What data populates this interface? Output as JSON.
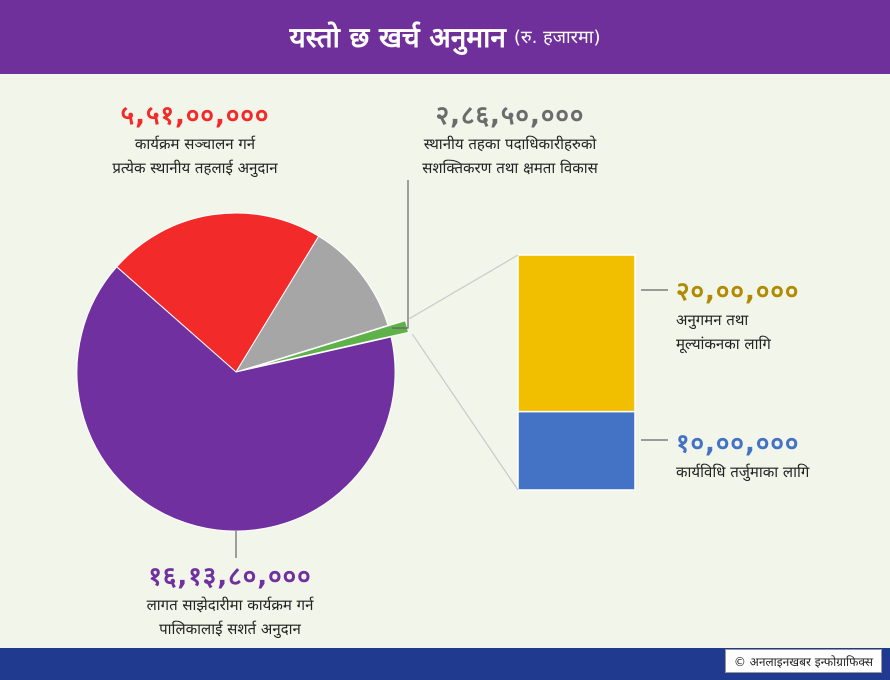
{
  "header": {
    "title": "यस्तो छ खर्च अनुमान",
    "subtitle": "(रु. हजारमा)"
  },
  "footer": {
    "credit": "© अनलाइनखबर इन्फोग्राफिक्स"
  },
  "colors": {
    "header_bg": "#70309b",
    "footer_bg": "#1f3a8f",
    "red": "#f22a2a",
    "gray": "#a6a6a6",
    "green": "#5fb24a",
    "purple": "#7030a0",
    "gold": "#f2bf00",
    "blue": "#4472c4"
  },
  "chart_data": [
    {
      "type": "pie",
      "slices": [
        {
          "value_label": "५,५१,००,०००",
          "value": 55100000,
          "label_line1": "कार्यक्रम सञ्चालन गर्न",
          "label_line2": "प्रत्येक स्थानीय तहलाई अनुदान",
          "color": "#f22a2a"
        },
        {
          "value_label": "२,८६,५०,०००",
          "value": 28650000,
          "label_line1": "स्थानीय तहका पदाधिकारीहरुको",
          "label_line2": "सशक्तिकरण तथा क्षमता विकास",
          "color": "#a6a6a6"
        },
        {
          "value_label": "",
          "value": 3000000,
          "label_line1": "",
          "label_line2": "",
          "color": "#5fb24a"
        },
        {
          "value_label": "१६,१३,८०,०००",
          "value": 161380000,
          "label_line1": "लागत साझेदारीमा कार्यक्रम गर्न",
          "label_line2": "पालिकालाई सशर्त अनुदान",
          "color": "#7030a0"
        }
      ]
    },
    {
      "type": "bar",
      "stacked": true,
      "segments": [
        {
          "value_label": "२०,००,०००",
          "value": 2000000,
          "label_line1": "अनुगमन तथा",
          "label_line2": "मूल्यांकनका लागि",
          "color": "#f2bf00"
        },
        {
          "value_label": "१०,००,०००",
          "value": 1000000,
          "label_line1": "कार्यविधि तर्जुमाका लागि",
          "label_line2": "",
          "color": "#4472c4"
        }
      ]
    }
  ]
}
